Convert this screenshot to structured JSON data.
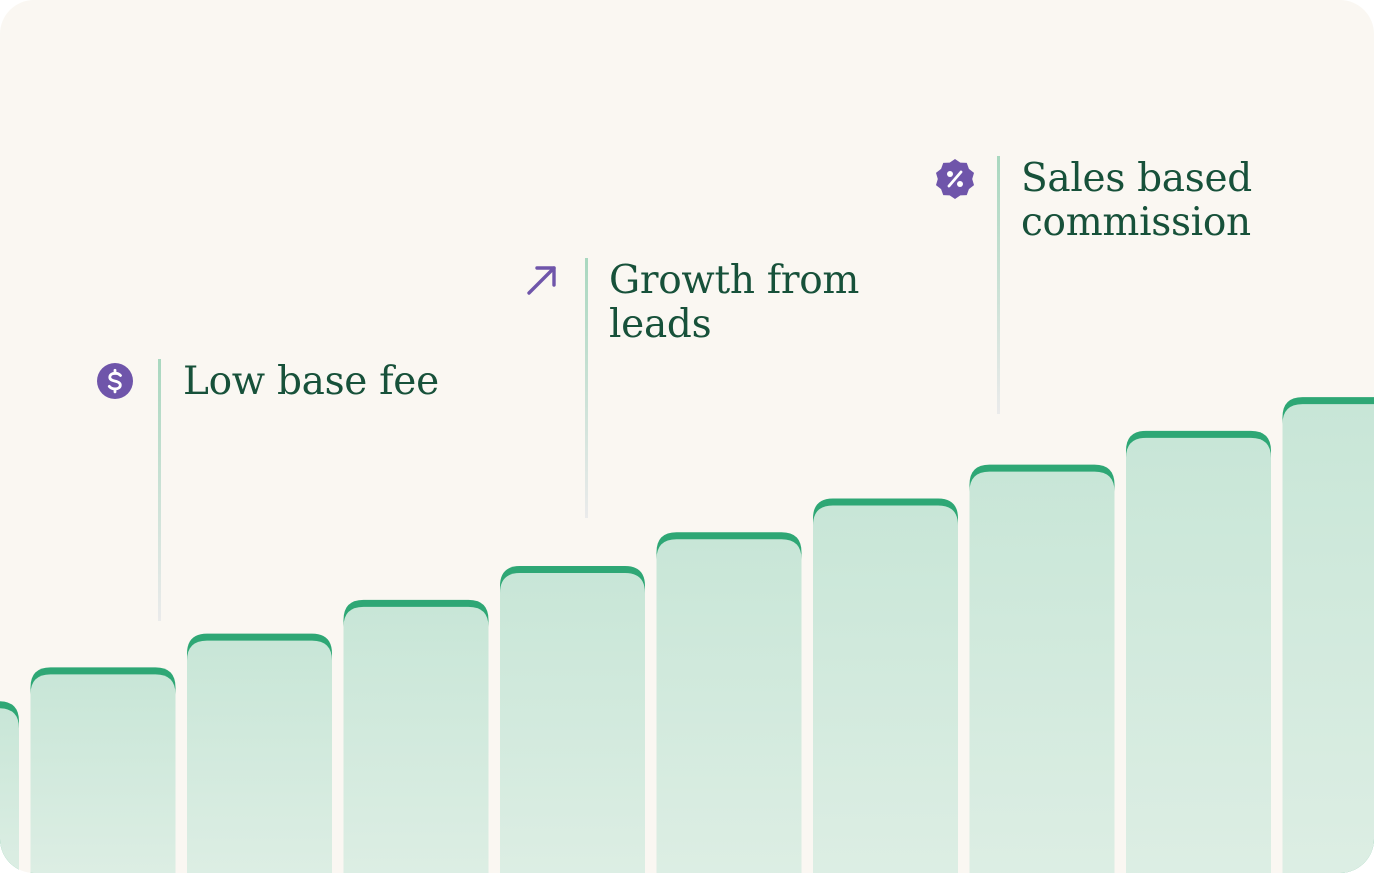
{
  "chart_data": {
    "type": "bar",
    "values": [
      61,
      73,
      85,
      97,
      109,
      121,
      133,
      145,
      157,
      169
    ],
    "ylim": [
      0,
      310
    ],
    "colors": {
      "bar_top": "#2ea775",
      "bar_fill_top": "#c8e6d7",
      "bar_fill_bottom": "#ddeee4",
      "background": "#faf7f2"
    },
    "annotations": [
      {
        "icon": "dollar-circle-icon",
        "lines": [
          "Low base fee"
        ]
      },
      {
        "icon": "arrow-up-right-icon",
        "lines": [
          "Growth from",
          "leads"
        ]
      },
      {
        "icon": "percent-badge-icon",
        "lines": [
          "Sales based",
          "commission"
        ]
      }
    ],
    "icon_color": "#6f55aa"
  }
}
